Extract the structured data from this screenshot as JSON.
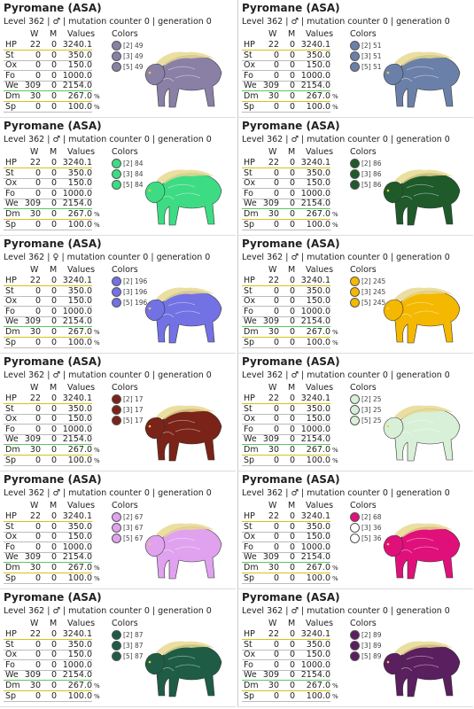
{
  "cards": [
    {
      "title": "Pyromane (ASA)",
      "level": "Level 362 | ♂ | mutation counter 0 | generation 0",
      "headers": [
        "W",
        "M",
        "Values"
      ],
      "colors_header": "Colors",
      "rows": [
        {
          "name": "HP",
          "w": "22",
          "m": "0",
          "value": "3240.1"
        },
        {
          "name": "St",
          "w": "0",
          "m": "0",
          "value": "350.0"
        },
        {
          "name": "Ox",
          "w": "0",
          "m": "0",
          "value": "150.0"
        },
        {
          "name": "Fo",
          "w": "0",
          "m": "0",
          "value": "1000.0"
        },
        {
          "name": "We",
          "w": "309",
          "m": "0",
          "value": "2154.0"
        },
        {
          "name": "Dm",
          "w": "30",
          "m": "0",
          "value": "267.0",
          "unit": "%"
        },
        {
          "name": "Sp",
          "w": "0",
          "m": "0",
          "value": "100.0",
          "unit": "%"
        }
      ],
      "colors": [
        {
          "label": "[2] 49",
          "color": "#8a80a6"
        },
        {
          "label": "[3] 49",
          "color": "#8a80a6"
        },
        {
          "label": "[5] 49",
          "color": "#8a80a6"
        }
      ]
    },
    {
      "title": "Pyromane (ASA)",
      "level": "Level 362 | ♂ | mutation counter 0 | generation 0",
      "headers": [
        "W",
        "M",
        "Values"
      ],
      "colors_header": "Colors",
      "rows": [
        {
          "name": "HP",
          "w": "22",
          "m": "0",
          "value": "3240.1"
        },
        {
          "name": "St",
          "w": "0",
          "m": "0",
          "value": "350.0"
        },
        {
          "name": "Ox",
          "w": "0",
          "m": "0",
          "value": "150.0"
        },
        {
          "name": "Fo",
          "w": "0",
          "m": "0",
          "value": "1000.0"
        },
        {
          "name": "We",
          "w": "309",
          "m": "0",
          "value": "2154.0"
        },
        {
          "name": "Dm",
          "w": "30",
          "m": "0",
          "value": "267.0",
          "unit": "%"
        },
        {
          "name": "Sp",
          "w": "0",
          "m": "0",
          "value": "100.0",
          "unit": "%"
        }
      ],
      "colors": [
        {
          "label": "[2] 51",
          "color": "#6a80a8"
        },
        {
          "label": "[3] 51",
          "color": "#6a80a8"
        },
        {
          "label": "[5] 51",
          "color": "#6a80a8"
        }
      ]
    },
    {
      "title": "Pyromane (ASA)",
      "level": "Level 362 | ♂ | mutation counter 0 | generation 0",
      "headers": [
        "W",
        "M",
        "Values"
      ],
      "colors_header": "Colors",
      "rows": [
        {
          "name": "HP",
          "w": "22",
          "m": "0",
          "value": "3240.1"
        },
        {
          "name": "St",
          "w": "0",
          "m": "0",
          "value": "350.0"
        },
        {
          "name": "Ox",
          "w": "0",
          "m": "0",
          "value": "150.0"
        },
        {
          "name": "Fo",
          "w": "0",
          "m": "0",
          "value": "1000.0"
        },
        {
          "name": "We",
          "w": "309",
          "m": "0",
          "value": "2154.0"
        },
        {
          "name": "Dm",
          "w": "30",
          "m": "0",
          "value": "267.0",
          "unit": "%"
        },
        {
          "name": "Sp",
          "w": "0",
          "m": "0",
          "value": "100.0",
          "unit": "%"
        }
      ],
      "colors": [
        {
          "label": "[2] 84",
          "color": "#3ddc84"
        },
        {
          "label": "[3] 84",
          "color": "#3ddc84"
        },
        {
          "label": "[5] 84",
          "color": "#3ddc84"
        }
      ]
    },
    {
      "title": "Pyromane (ASA)",
      "level": "Level 362 | ♂ | mutation counter 0 | generation 0",
      "headers": [
        "W",
        "M",
        "Values"
      ],
      "colors_header": "Colors",
      "rows": [
        {
          "name": "HP",
          "w": "22",
          "m": "0",
          "value": "3240.1"
        },
        {
          "name": "St",
          "w": "0",
          "m": "0",
          "value": "350.0"
        },
        {
          "name": "Ox",
          "w": "0",
          "m": "0",
          "value": "150.0"
        },
        {
          "name": "Fo",
          "w": "0",
          "m": "0",
          "value": "1000.0"
        },
        {
          "name": "We",
          "w": "309",
          "m": "0",
          "value": "2154.0"
        },
        {
          "name": "Dm",
          "w": "30",
          "m": "0",
          "value": "267.0",
          "unit": "%"
        },
        {
          "name": "Sp",
          "w": "0",
          "m": "0",
          "value": "100.0",
          "unit": "%"
        }
      ],
      "colors": [
        {
          "label": "[2] 86",
          "color": "#1f5a2a"
        },
        {
          "label": "[3] 86",
          "color": "#1f5a2a"
        },
        {
          "label": "[5] 86",
          "color": "#1f5a2a"
        }
      ]
    },
    {
      "title": "Pyromane (ASA)",
      "level": "Level 362 | ♀ | mutation counter 0 | generation 0",
      "headers": [
        "W",
        "M",
        "Values"
      ],
      "colors_header": "Colors",
      "rows": [
        {
          "name": "HP",
          "w": "22",
          "m": "0",
          "value": "3240.1"
        },
        {
          "name": "St",
          "w": "0",
          "m": "0",
          "value": "350.0"
        },
        {
          "name": "Ox",
          "w": "0",
          "m": "0",
          "value": "150.0"
        },
        {
          "name": "Fo",
          "w": "0",
          "m": "0",
          "value": "1000.0"
        },
        {
          "name": "We",
          "w": "309",
          "m": "0",
          "value": "2154.0"
        },
        {
          "name": "Dm",
          "w": "30",
          "m": "0",
          "value": "267.0",
          "unit": "%"
        },
        {
          "name": "Sp",
          "w": "0",
          "m": "0",
          "value": "100.0",
          "unit": "%"
        }
      ],
      "colors": [
        {
          "label": "[2] 196",
          "color": "#7272e4"
        },
        {
          "label": "[3] 196",
          "color": "#7272e4"
        },
        {
          "label": "[5] 196",
          "color": "#7272e4"
        }
      ]
    },
    {
      "title": "Pyromane (ASA)",
      "level": "Level 362 | ♂ | mutation counter 0 | generation 0",
      "headers": [
        "W",
        "M",
        "Values"
      ],
      "colors_header": "Colors",
      "rows": [
        {
          "name": "HP",
          "w": "22",
          "m": "0",
          "value": "3240.1"
        },
        {
          "name": "St",
          "w": "0",
          "m": "0",
          "value": "350.0"
        },
        {
          "name": "Ox",
          "w": "0",
          "m": "0",
          "value": "150.0"
        },
        {
          "name": "Fo",
          "w": "0",
          "m": "0",
          "value": "1000.0"
        },
        {
          "name": "We",
          "w": "309",
          "m": "0",
          "value": "2154.0"
        },
        {
          "name": "Dm",
          "w": "30",
          "m": "0",
          "value": "267.0",
          "unit": "%"
        },
        {
          "name": "Sp",
          "w": "0",
          "m": "0",
          "value": "100.0",
          "unit": "%"
        }
      ],
      "colors": [
        {
          "label": "[2] 245",
          "color": "#f5b800"
        },
        {
          "label": "[3] 245",
          "color": "#f5b800"
        },
        {
          "label": "[5] 245",
          "color": "#f5b800"
        }
      ]
    },
    {
      "title": "Pyromane (ASA)",
      "level": "Level 362 | ♂ | mutation counter 0 | generation 0",
      "headers": [
        "W",
        "M",
        "Values"
      ],
      "colors_header": "Colors",
      "rows": [
        {
          "name": "HP",
          "w": "22",
          "m": "0",
          "value": "3240.1"
        },
        {
          "name": "St",
          "w": "0",
          "m": "0",
          "value": "350.0"
        },
        {
          "name": "Ox",
          "w": "0",
          "m": "0",
          "value": "150.0"
        },
        {
          "name": "Fo",
          "w": "0",
          "m": "0",
          "value": "1000.0"
        },
        {
          "name": "We",
          "w": "309",
          "m": "0",
          "value": "2154.0"
        },
        {
          "name": "Dm",
          "w": "30",
          "m": "0",
          "value": "267.0",
          "unit": "%"
        },
        {
          "name": "Sp",
          "w": "0",
          "m": "0",
          "value": "100.0",
          "unit": "%"
        }
      ],
      "colors": [
        {
          "label": "[2] 17",
          "color": "#7a2318"
        },
        {
          "label": "[3] 17",
          "color": "#7a2318"
        },
        {
          "label": "[5] 17",
          "color": "#7a2318"
        }
      ]
    },
    {
      "title": "Pyromane (ASA)",
      "level": "Level 362 | ♂ | mutation counter 0 | generation 0",
      "headers": [
        "W",
        "M",
        "Values"
      ],
      "colors_header": "Colors",
      "rows": [
        {
          "name": "HP",
          "w": "22",
          "m": "0",
          "value": "3240.1"
        },
        {
          "name": "St",
          "w": "0",
          "m": "0",
          "value": "350.0"
        },
        {
          "name": "Ox",
          "w": "0",
          "m": "0",
          "value": "150.0"
        },
        {
          "name": "Fo",
          "w": "0",
          "m": "0",
          "value": "1000.0"
        },
        {
          "name": "We",
          "w": "309",
          "m": "0",
          "value": "2154.0"
        },
        {
          "name": "Dm",
          "w": "30",
          "m": "0",
          "value": "267.0",
          "unit": "%"
        },
        {
          "name": "Sp",
          "w": "0",
          "m": "0",
          "value": "100.0",
          "unit": "%"
        }
      ],
      "colors": [
        {
          "label": "[2] 25",
          "color": "#d8f0d8"
        },
        {
          "label": "[3] 25",
          "color": "#d8f0d8"
        },
        {
          "label": "[5] 25",
          "color": "#d8f0d8"
        }
      ]
    },
    {
      "title": "Pyromane (ASA)",
      "level": "Level 362 | ♂ | mutation counter 0 | generation 0",
      "headers": [
        "W",
        "M",
        "Values"
      ],
      "colors_header": "Colors",
      "rows": [
        {
          "name": "HP",
          "w": "22",
          "m": "0",
          "value": "3240.1"
        },
        {
          "name": "St",
          "w": "0",
          "m": "0",
          "value": "350.0"
        },
        {
          "name": "Ox",
          "w": "0",
          "m": "0",
          "value": "150.0"
        },
        {
          "name": "Fo",
          "w": "0",
          "m": "0",
          "value": "1000.0"
        },
        {
          "name": "We",
          "w": "309",
          "m": "0",
          "value": "2154.0"
        },
        {
          "name": "Dm",
          "w": "30",
          "m": "0",
          "value": "267.0",
          "unit": "%"
        },
        {
          "name": "Sp",
          "w": "0",
          "m": "0",
          "value": "100.0",
          "unit": "%"
        }
      ],
      "colors": [
        {
          "label": "[2] 67",
          "color": "#e0a2ee"
        },
        {
          "label": "[3] 67",
          "color": "#e0a2ee"
        },
        {
          "label": "[5] 67",
          "color": "#e0a2ee"
        }
      ]
    },
    {
      "title": "Pyromane (ASA)",
      "level": "Level 362 | ♂ | mutation counter 0 | generation 0",
      "headers": [
        "W",
        "M",
        "Values"
      ],
      "colors_header": "Colors",
      "rows": [
        {
          "name": "HP",
          "w": "22",
          "m": "0",
          "value": "3240.1"
        },
        {
          "name": "St",
          "w": "0",
          "m": "0",
          "value": "350.0"
        },
        {
          "name": "Ox",
          "w": "0",
          "m": "0",
          "value": "150.0"
        },
        {
          "name": "Fo",
          "w": "0",
          "m": "0",
          "value": "1000.0"
        },
        {
          "name": "We",
          "w": "309",
          "m": "0",
          "value": "2154.0"
        },
        {
          "name": "Dm",
          "w": "30",
          "m": "0",
          "value": "267.0",
          "unit": "%"
        },
        {
          "name": "Sp",
          "w": "0",
          "m": "0",
          "value": "100.0",
          "unit": "%"
        }
      ],
      "colors": [
        {
          "label": "[2] 68",
          "color": "#e0107a"
        },
        {
          "label": "[3] 36",
          "color": "#ffffff"
        },
        {
          "label": "[5] 36",
          "color": "#ffffff"
        }
      ]
    },
    {
      "title": "Pyromane (ASA)",
      "level": "Level 362 | ♂ | mutation counter 0 | generation 0",
      "headers": [
        "W",
        "M",
        "Values"
      ],
      "colors_header": "Colors",
      "rows": [
        {
          "name": "HP",
          "w": "22",
          "m": "0",
          "value": "3240.1"
        },
        {
          "name": "St",
          "w": "0",
          "m": "0",
          "value": "350.0"
        },
        {
          "name": "Ox",
          "w": "0",
          "m": "0",
          "value": "150.0"
        },
        {
          "name": "Fo",
          "w": "0",
          "m": "0",
          "value": "1000.0"
        },
        {
          "name": "We",
          "w": "309",
          "m": "0",
          "value": "2154.0"
        },
        {
          "name": "Dm",
          "w": "30",
          "m": "0",
          "value": "267.0",
          "unit": "%"
        },
        {
          "name": "Sp",
          "w": "0",
          "m": "0",
          "value": "100.0",
          "unit": "%"
        }
      ],
      "colors": [
        {
          "label": "[2] 87",
          "color": "#1f5c45"
        },
        {
          "label": "[3] 87",
          "color": "#1f5c45"
        },
        {
          "label": "[5] 87",
          "color": "#1f5c45"
        }
      ]
    },
    {
      "title": "Pyromane (ASA)",
      "level": "Level 362 | ♂ | mutation counter 0 | generation 0",
      "headers": [
        "W",
        "M",
        "Values"
      ],
      "colors_header": "Colors",
      "rows": [
        {
          "name": "HP",
          "w": "22",
          "m": "0",
          "value": "3240.1"
        },
        {
          "name": "St",
          "w": "0",
          "m": "0",
          "value": "350.0"
        },
        {
          "name": "Ox",
          "w": "0",
          "m": "0",
          "value": "150.0"
        },
        {
          "name": "Fo",
          "w": "0",
          "m": "0",
          "value": "1000.0"
        },
        {
          "name": "We",
          "w": "309",
          "m": "0",
          "value": "2154.0"
        },
        {
          "name": "Dm",
          "w": "30",
          "m": "0",
          "value": "267.0",
          "unit": "%"
        },
        {
          "name": "Sp",
          "w": "0",
          "m": "0",
          "value": "100.0",
          "unit": "%"
        }
      ],
      "colors": [
        {
          "label": "[2] 89",
          "color": "#5a1f5e"
        },
        {
          "label": "[3] 89",
          "color": "#5a1f5e"
        },
        {
          "label": "[5] 89",
          "color": "#5a1f5e"
        }
      ]
    }
  ]
}
